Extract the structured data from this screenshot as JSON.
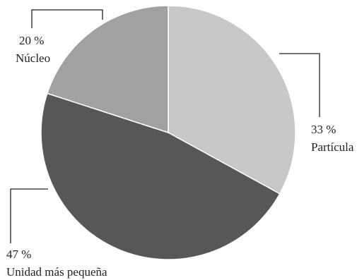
{
  "chart_data": {
    "type": "pie",
    "start_angle_deg": 0,
    "direction": "clockwise",
    "slices": [
      {
        "label": "Partícula",
        "value": 33,
        "value_label": "33 %",
        "color": "#c8c8c8"
      },
      {
        "label": "Unidad más pequeña",
        "value": 47,
        "value_label": "47 %",
        "color": "#575757"
      },
      {
        "label": "Núcleo",
        "value": 20,
        "value_label": "20 %",
        "color": "#a1a1a1"
      }
    ]
  }
}
